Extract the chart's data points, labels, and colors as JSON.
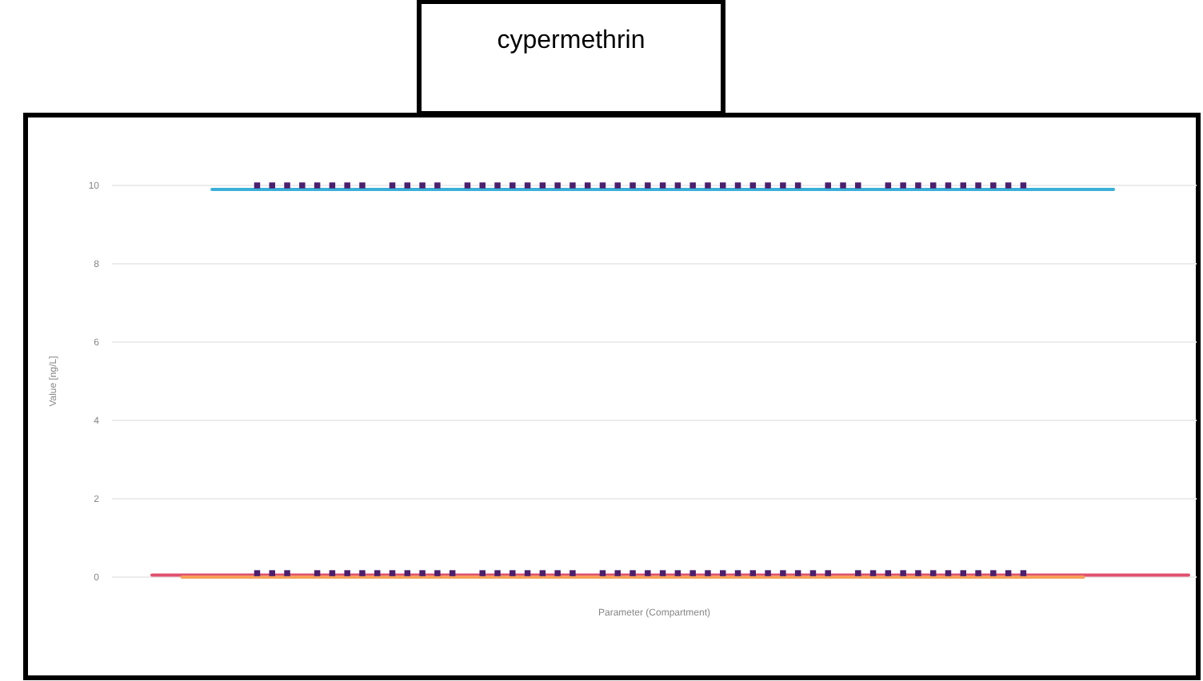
{
  "chart_data": {
    "type": "scatter",
    "title": "cypermethrin",
    "xlabel": "Parameter (Compartment)",
    "ylabel": "Value [ng/L]",
    "categories": [
      null,
      null,
      null,
      null,
      null,
      null,
      null,
      null,
      null,
      null,
      null,
      null,
      null,
      null,
      null,
      null,
      null,
      null,
      null,
      null,
      null,
      null,
      null,
      null,
      null,
      null,
      null,
      null,
      null,
      null,
      null,
      null,
      null,
      null,
      null,
      null,
      null,
      null,
      null,
      null,
      null,
      null,
      null,
      null,
      null,
      null,
      null,
      null,
      null,
      null,
      null,
      null,
      null,
      null,
      null,
      null,
      null,
      null,
      null,
      null,
      null,
      null,
      null,
      null,
      null,
      null,
      null,
      null,
      null,
      null
    ],
    "ylim": [
      0,
      10
    ],
    "yticks": [
      0,
      2,
      4,
      6,
      8,
      10
    ],
    "grid": "y",
    "tick_labels": "y",
    "marker": "square",
    "series": [
      {
        "type": "line",
        "marker": "none",
        "color": "#e0506e",
        "values": [
          0.05,
          0.05,
          0.05,
          0.05,
          0.05,
          0.05,
          0.05,
          0.05,
          0.05,
          0.05,
          0.05,
          0.05,
          0.05,
          0.05,
          0.05,
          0.05,
          0.05,
          0.05,
          0.05,
          0.05,
          0.05,
          0.05,
          0.05,
          0.05,
          0.05,
          0.05,
          0.05,
          0.05,
          0.05,
          0.05,
          0.05,
          0.05,
          0.05,
          0.05,
          0.05,
          0.05,
          0.05,
          0.05,
          0.05,
          0.05,
          0.05,
          0.05,
          0.05,
          0.05,
          0.05,
          0.05,
          0.05,
          0.05,
          0.05,
          0.05,
          0.05,
          0.05,
          0.05,
          0.05,
          0.05,
          0.05,
          0.05,
          0.05,
          0.05,
          0.05,
          0.05,
          0.05,
          0.05,
          0.05,
          0.05,
          0.05,
          0.05,
          0.05,
          0.05,
          0.05
        ]
      },
      {
        "type": "line",
        "marker": "none",
        "color": "#f5a05a",
        "values": [
          null,
          null,
          0,
          0,
          0,
          0,
          0,
          0,
          0,
          0,
          0,
          0,
          0,
          0,
          0,
          0,
          0,
          0,
          0,
          0,
          0,
          0,
          0,
          0,
          0,
          0,
          0,
          0,
          0,
          0,
          0,
          0,
          0,
          0,
          0,
          0,
          0,
          0,
          0,
          0,
          0,
          0,
          0,
          0,
          0,
          0,
          0,
          0,
          0,
          0,
          0,
          0,
          0,
          0,
          0,
          0,
          0,
          0,
          0,
          0,
          0,
          0,
          0,
          null,
          null,
          null,
          null,
          null,
          null,
          null
        ]
      },
      {
        "type": "line",
        "marker": "none",
        "color": "#3ab0d8",
        "values": [
          null,
          null,
          null,
          null,
          9.9,
          9.9,
          9.9,
          9.9,
          9.9,
          9.9,
          9.9,
          9.9,
          9.9,
          9.9,
          9.9,
          9.9,
          9.9,
          9.9,
          9.9,
          9.9,
          9.9,
          9.9,
          9.9,
          9.9,
          9.9,
          9.9,
          9.9,
          9.9,
          9.9,
          9.9,
          9.9,
          9.9,
          9.9,
          9.9,
          9.9,
          9.9,
          9.9,
          9.9,
          9.9,
          9.9,
          9.9,
          9.9,
          9.9,
          9.9,
          9.9,
          9.9,
          9.9,
          9.9,
          9.9,
          9.9,
          9.9,
          9.9,
          9.9,
          9.9,
          9.9,
          9.9,
          9.9,
          9.9,
          9.9,
          9.9,
          9.9,
          9.9,
          9.9,
          9.9,
          9.9,
          null,
          null,
          null,
          null,
          null
        ]
      },
      {
        "color": "#4b1e6e",
        "values": [
          null,
          null,
          null,
          null,
          null,
          null,
          null,
          10,
          10,
          10,
          10,
          10,
          10,
          10,
          10,
          null,
          10,
          10,
          10,
          10,
          null,
          10,
          10,
          10,
          10,
          10,
          10,
          10,
          10,
          10,
          10,
          10,
          10,
          10,
          10,
          10,
          10,
          10,
          10,
          10,
          10,
          10,
          10,
          10,
          null,
          10,
          10,
          10,
          null,
          10,
          10,
          10,
          10,
          10,
          10,
          10,
          10,
          10,
          10,
          null,
          null,
          null,
          null,
          null,
          null,
          null,
          null,
          null,
          null,
          null
        ]
      },
      {
        "color": "#4b1e6e",
        "values": [
          null,
          null,
          null,
          null,
          null,
          null,
          null,
          0.1,
          0.1,
          0.1,
          null,
          0.1,
          0.1,
          0.1,
          0.1,
          0.1,
          0.1,
          0.1,
          0.1,
          0.1,
          0.1,
          null,
          0.1,
          0.1,
          0.1,
          0.1,
          0.1,
          0.1,
          0.1,
          null,
          0.1,
          0.1,
          0.1,
          0.1,
          0.1,
          0.1,
          0.1,
          0.1,
          0.1,
          0.1,
          0.1,
          0.1,
          0.1,
          0.1,
          0.1,
          0.1,
          null,
          0.1,
          0.1,
          0.1,
          0.1,
          0.1,
          0.1,
          0.1,
          0.1,
          0.1,
          0.1,
          0.1,
          0.1,
          null,
          null,
          null,
          null,
          null,
          null,
          null,
          null,
          null,
          null,
          null
        ]
      }
    ]
  }
}
